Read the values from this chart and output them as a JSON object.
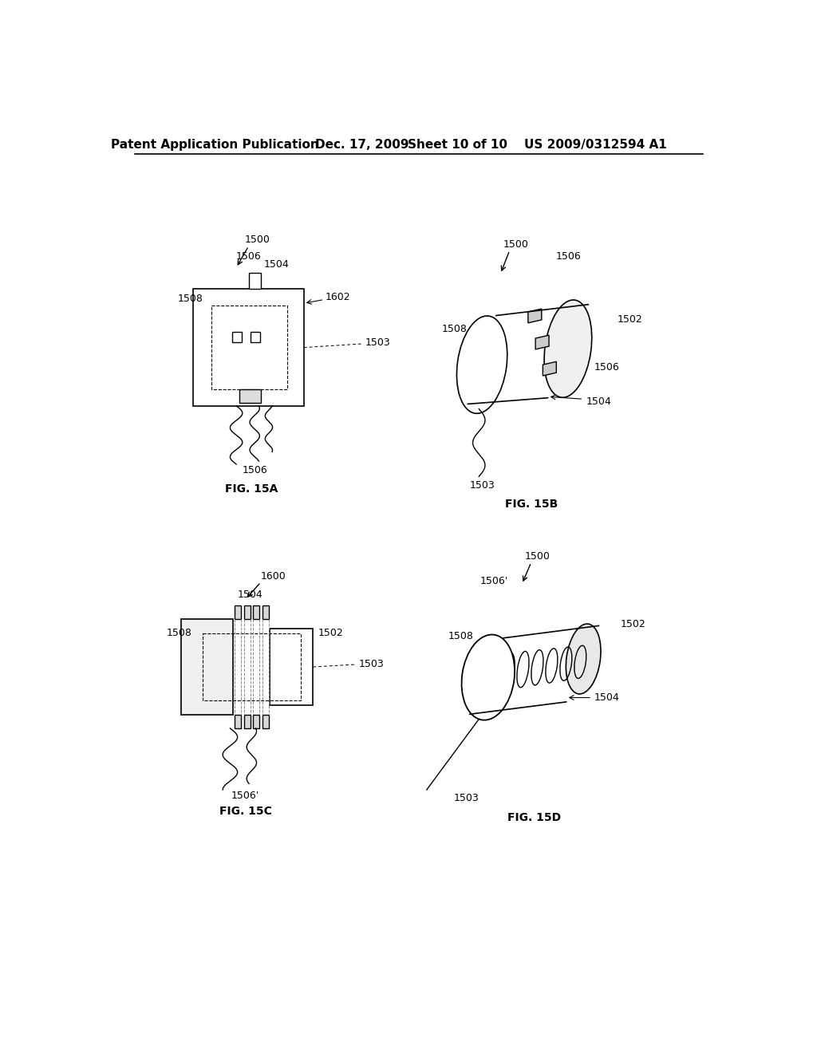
{
  "background_color": "#ffffff",
  "header_text": "Patent Application Publication",
  "header_date": "Dec. 17, 2009",
  "header_sheet": "Sheet 10 of 10",
  "header_patent": "US 2009/0312594 A1",
  "line_color": "#000000",
  "text_color": "#000000",
  "font_size_header": 11,
  "font_size_label": 10,
  "font_size_ref": 9
}
